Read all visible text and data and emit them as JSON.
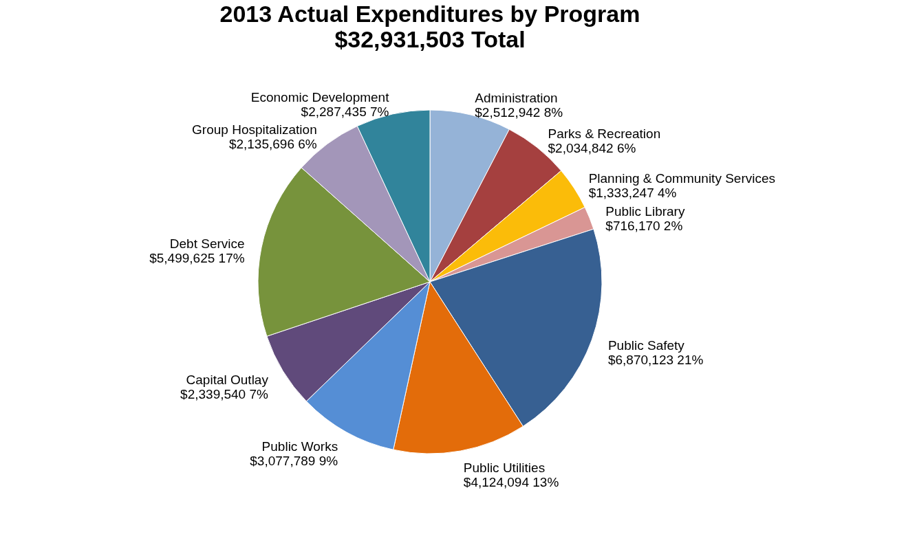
{
  "chart_data": {
    "type": "pie",
    "title": "2013 Actual Expenditures by Program",
    "subtitle": "$32,931,503 Total",
    "categories": [
      "Administration",
      "Parks & Recreation",
      "Planning & Community Services",
      "Public Library",
      "Public Safety",
      "Public Utilities",
      "Public Works",
      "Capital Outlay",
      "Debt Service",
      "Group Hospitalization",
      "Economic Development"
    ],
    "values": [
      2512942,
      2034842,
      1333247,
      716170,
      6870123,
      4124094,
      3077789,
      2339540,
      5499625,
      2135696,
      2287435
    ],
    "value_labels": [
      "$2,512,942   8%",
      "$2,034,842   6%",
      "$1,333,247   4%",
      "$716,170   2%",
      "$6,870,123   21%",
      "$4,124,094   13%",
      "$3,077,789   9%",
      "$2,339,540   7%",
      "$5,499,625   17%",
      "$2,135,696   6%",
      "$2,287,435   7%"
    ],
    "colors": [
      "#95b3d7",
      "#a5403f",
      "#fbbc09",
      "#d99694",
      "#376092",
      "#e36c0a",
      "#558ed5",
      "#604a7b",
      "#77933c",
      "#a396b9",
      "#31849b"
    ],
    "legend": false
  }
}
